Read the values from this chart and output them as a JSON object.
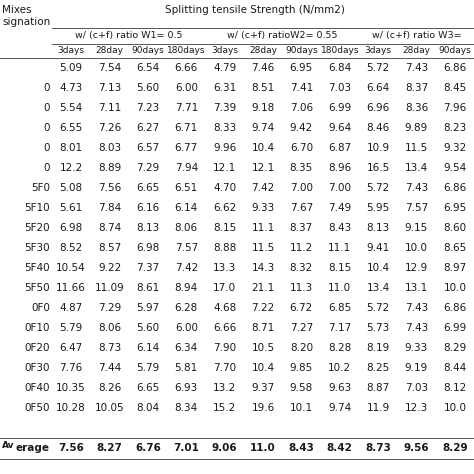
{
  "title_left": "Mixes\nsignation",
  "title_center": "Splitting tensile Strength (N/mm2)",
  "col_headers_level1": [
    "w/ (c+f) ratio W1= 0.5",
    "w/ (c+f) ratioW2= 0.55",
    "w/ (c+f) ratio W3="
  ],
  "col_headers_level2": [
    "3days",
    "28day",
    "90days",
    "180days",
    "3days",
    "28day",
    "90days",
    "180days",
    "3days",
    "28day",
    "90days"
  ],
  "row_labels": [
    "",
    "0",
    "0",
    "0",
    "0",
    "0",
    "5F0",
    "5F10",
    "5F20",
    "5F30",
    "5F40",
    "5F50",
    "0F0",
    "0F10",
    "0F20",
    "0F30",
    "0F40",
    "0F50",
    "",
    "erage"
  ],
  "data": [
    [
      "5.09",
      "7.54",
      "6.54",
      "6.66",
      "4.79",
      "7.46",
      "6.95",
      "6.84",
      "5.72",
      "7.43",
      "6.86"
    ],
    [
      "4.73",
      "7.13",
      "5.60",
      "6.00",
      "6.31",
      "8.51",
      "7.41",
      "7.03",
      "6.64",
      "8.37",
      "8.45"
    ],
    [
      "5.54",
      "7.11",
      "7.23",
      "7.71",
      "7.39",
      "9.18",
      "7.06",
      "6.99",
      "6.96",
      "8.36",
      "7.96"
    ],
    [
      "6.55",
      "7.26",
      "6.27",
      "6.71",
      "8.33",
      "9.74",
      "9.42",
      "9.64",
      "8.46",
      "9.89",
      "8.23"
    ],
    [
      "8.01",
      "8.03",
      "6.57",
      "6.77",
      "9.96",
      "10.4",
      "6.70",
      "6.87",
      "10.9",
      "11.5",
      "9.32"
    ],
    [
      "12.2",
      "8.89",
      "7.29",
      "7.94",
      "12.1",
      "12.1",
      "8.35",
      "8.96",
      "16.5",
      "13.4",
      "9.54"
    ],
    [
      "5.08",
      "7.56",
      "6.65",
      "6.51",
      "4.70",
      "7.42",
      "7.00",
      "7.00",
      "5.72",
      "7.43",
      "6.86"
    ],
    [
      "5.61",
      "7.84",
      "6.16",
      "6.14",
      "6.62",
      "9.33",
      "7.67",
      "7.49",
      "5.95",
      "7.57",
      "6.95"
    ],
    [
      "6.98",
      "8.74",
      "8.13",
      "8.06",
      "8.15",
      "11.1",
      "8.37",
      "8.43",
      "8.13",
      "9.15",
      "8.60"
    ],
    [
      "8.52",
      "8.57",
      "6.98",
      "7.57",
      "8.88",
      "11.5",
      "11.2",
      "11.1",
      "9.41",
      "10.0",
      "8.65"
    ],
    [
      "10.54",
      "9.22",
      "7.37",
      "7.42",
      "13.3",
      "14.3",
      "8.32",
      "8.15",
      "10.4",
      "12.9",
      "8.97"
    ],
    [
      "11.66",
      "11.09",
      "8.61",
      "8.94",
      "17.0",
      "21.1",
      "11.3",
      "11.0",
      "13.4",
      "13.1",
      "10.0"
    ],
    [
      "4.87",
      "7.29",
      "5.97",
      "6.28",
      "4.68",
      "7.22",
      "6.72",
      "6.85",
      "5.72",
      "7.43",
      "6.86"
    ],
    [
      "5.79",
      "8.06",
      "5.60",
      "6.00",
      "6.66",
      "8.71",
      "7.27",
      "7.17",
      "5.73",
      "7.43",
      "6.99"
    ],
    [
      "6.47",
      "8.73",
      "6.14",
      "6.34",
      "7.90",
      "10.5",
      "8.20",
      "8.28",
      "8.19",
      "9.33",
      "8.29"
    ],
    [
      "7.76",
      "7.44",
      "5.79",
      "5.81",
      "7.70",
      "10.4",
      "9.85",
      "10.2",
      "8.25",
      "9.19",
      "8.44"
    ],
    [
      "10.35",
      "8.26",
      "6.65",
      "6.93",
      "13.2",
      "9.37",
      "9.58",
      "9.63",
      "8.87",
      "7.03",
      "8.12"
    ],
    [
      "10.28",
      "10.05",
      "8.04",
      "8.34",
      "15.2",
      "19.6",
      "10.1",
      "9.74",
      "11.9",
      "12.3",
      "10.0"
    ],
    [
      "",
      "",
      "",
      "",
      "",
      "",
      "",
      "",
      "",
      "",
      ""
    ],
    [
      "7.56",
      "8.27",
      "6.76",
      "7.01",
      "9.06",
      "11.0",
      "8.43",
      "8.42",
      "8.73",
      "9.56",
      "8.29"
    ]
  ],
  "bg_color": "#ffffff",
  "text_color": "#1a1a1a",
  "avg_label_prefix": "Av",
  "avg_label_suffix": "erage"
}
